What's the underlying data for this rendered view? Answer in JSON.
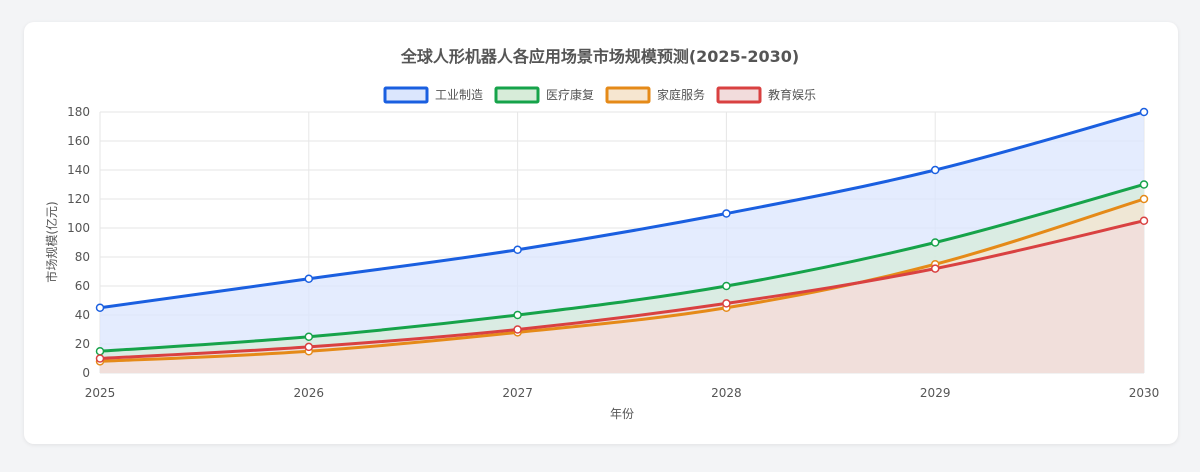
{
  "chart_data": {
    "type": "area",
    "title": "全球人形机器人各应用场景市场规模预测(2025-2030)",
    "xlabel": "年份",
    "ylabel": "市场规模(亿元)",
    "categories": [
      "2025",
      "2026",
      "2027",
      "2028",
      "2029",
      "2030"
    ],
    "ylim": [
      0,
      180
    ],
    "yticks": [
      0,
      20,
      40,
      60,
      80,
      100,
      120,
      140,
      160,
      180
    ],
    "grid": true,
    "legend_position": "top-center",
    "series": [
      {
        "name": "工业制造",
        "values": [
          45,
          65,
          85,
          110,
          140,
          180
        ],
        "color": "#1a5fe0",
        "fill": "#dbe6fd"
      },
      {
        "name": "医疗康复",
        "values": [
          15,
          25,
          40,
          60,
          90,
          130
        ],
        "color": "#16a34a",
        "fill": "#d7ecd9"
      },
      {
        "name": "家庭服务",
        "values": [
          8,
          15,
          28,
          45,
          75,
          120
        ],
        "color": "#e58a18",
        "fill": "#f6e6d0"
      },
      {
        "name": "教育娱乐",
        "values": [
          10,
          18,
          30,
          48,
          72,
          105
        ],
        "color": "#d94141",
        "fill": "#f2dcdc"
      }
    ]
  }
}
